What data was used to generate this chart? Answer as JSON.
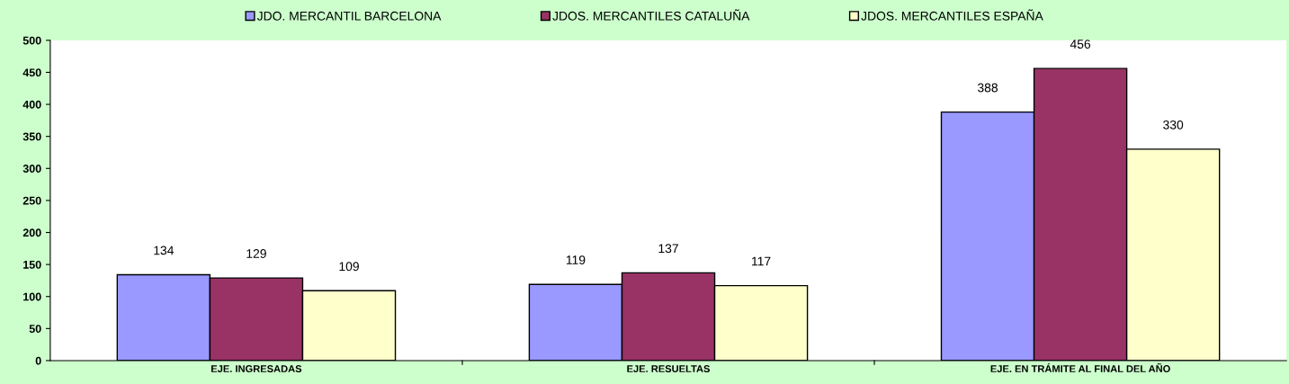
{
  "chart_data": {
    "type": "bar",
    "categories": [
      "EJE. INGRESADAS",
      "EJE. RESUELTAS",
      "EJE. EN TRÁMITE AL FINAL DEL AÑO"
    ],
    "series": [
      {
        "name": "JDO. MERCANTIL BARCELONA",
        "color": "#9999ff",
        "values": [
          134,
          119,
          388
        ]
      },
      {
        "name": "JDOS. MERCANTILES CATALUÑA",
        "color": "#993366",
        "values": [
          129,
          137,
          456
        ]
      },
      {
        "name": "JDOS. MERCANTILES ESPAÑA",
        "color": "#ffffcc",
        "values": [
          109,
          117,
          330
        ]
      }
    ],
    "ylim": [
      0,
      500
    ],
    "yticks": [
      0,
      50,
      100,
      150,
      200,
      250,
      300,
      350,
      400,
      450,
      500
    ],
    "grid": false,
    "legend": "top",
    "data_labels": true
  }
}
